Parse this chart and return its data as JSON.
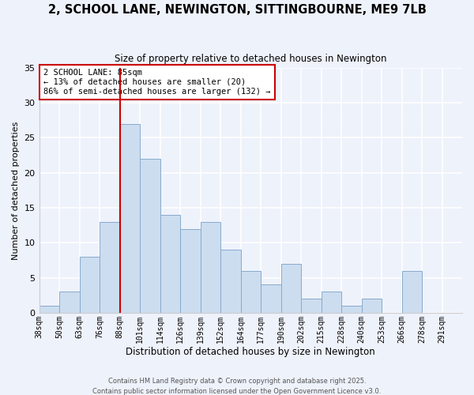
{
  "title": "2, SCHOOL LANE, NEWINGTON, SITTINGBOURNE, ME9 7LB",
  "subtitle": "Size of property relative to detached houses in Newington",
  "xlabel": "Distribution of detached houses by size in Newington",
  "ylabel": "Number of detached properties",
  "bin_labels": [
    "38sqm",
    "50sqm",
    "63sqm",
    "76sqm",
    "88sqm",
    "101sqm",
    "114sqm",
    "126sqm",
    "139sqm",
    "152sqm",
    "164sqm",
    "177sqm",
    "190sqm",
    "202sqm",
    "215sqm",
    "228sqm",
    "240sqm",
    "253sqm",
    "266sqm",
    "278sqm",
    "291sqm"
  ],
  "counts": [
    1,
    3,
    8,
    13,
    27,
    22,
    14,
    12,
    13,
    9,
    6,
    4,
    7,
    2,
    3,
    1,
    2,
    0,
    6,
    0,
    0
  ],
  "bar_color": "#ccddf0",
  "bar_edge_color": "#88aacc",
  "highlight_bin_index": 4,
  "highlight_line_color": "#cc0000",
  "annotation_text": "2 SCHOOL LANE: 85sqm\n← 13% of detached houses are smaller (20)\n86% of semi-detached houses are larger (132) →",
  "annotation_box_color": "#ffffff",
  "annotation_box_edge": "#cc0000",
  "ylim": [
    0,
    35
  ],
  "yticks": [
    0,
    5,
    10,
    15,
    20,
    25,
    30,
    35
  ],
  "bg_color": "#eef2fb",
  "grid_color": "#ffffff",
  "footer_line1": "Contains HM Land Registry data © Crown copyright and database right 2025.",
  "footer_line2": "Contains public sector information licensed under the Open Government Licence v3.0."
}
